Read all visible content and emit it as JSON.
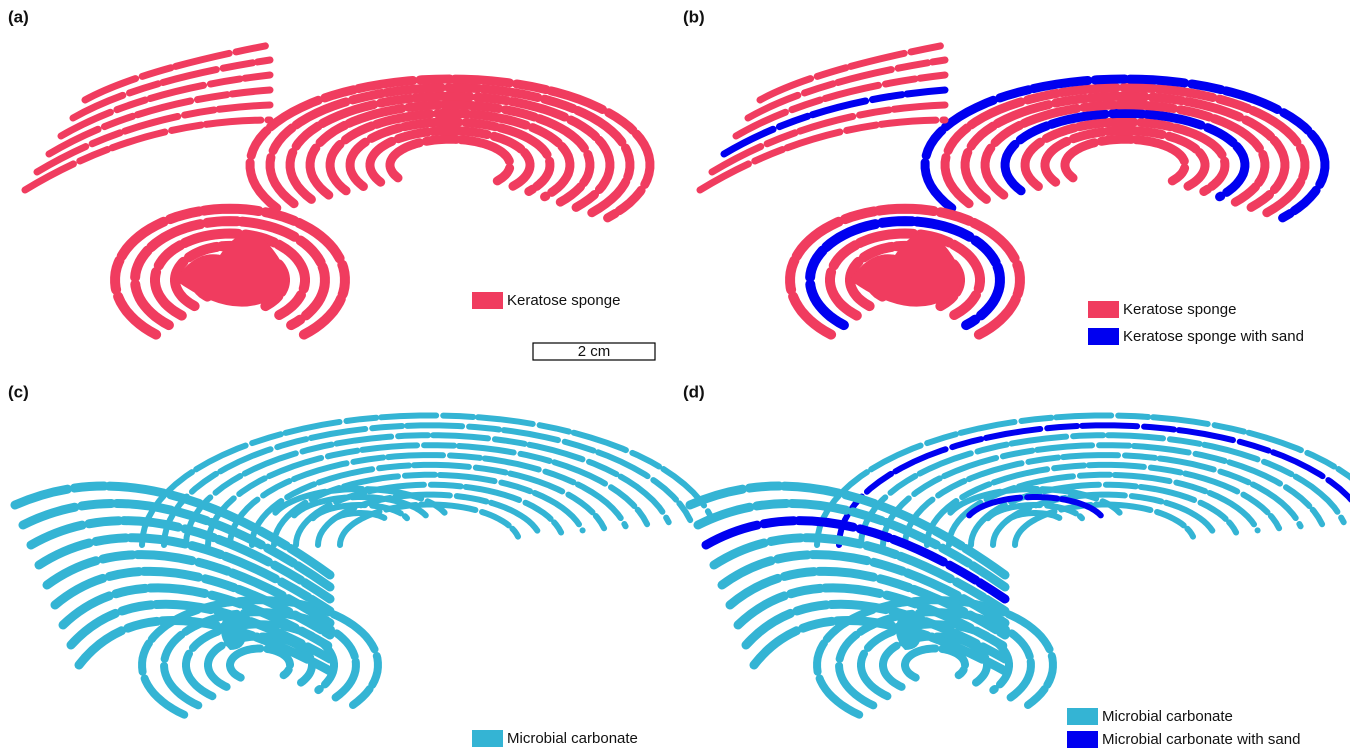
{
  "panels": [
    {
      "label": "(a)",
      "legend": [
        {
          "text": "Keratose sponge",
          "color": "#f03c5f"
        }
      ]
    },
    {
      "label": "(b)",
      "legend": [
        {
          "text": "Keratose sponge",
          "color": "#f03c5f"
        },
        {
          "text": "Keratose sponge with sand",
          "color": "#0000f0"
        }
      ]
    },
    {
      "label": "(c)",
      "legend": [
        {
          "text": "Microbial carbonate",
          "color": "#34b4d4"
        }
      ]
    },
    {
      "label": "(d)",
      "legend": [
        {
          "text": "Microbial carbonate",
          "color": "#34b4d4"
        },
        {
          "text": "Microbial carbonate with sand",
          "color": "#0000f0"
        }
      ]
    }
  ],
  "scale_bar": "2 cm"
}
